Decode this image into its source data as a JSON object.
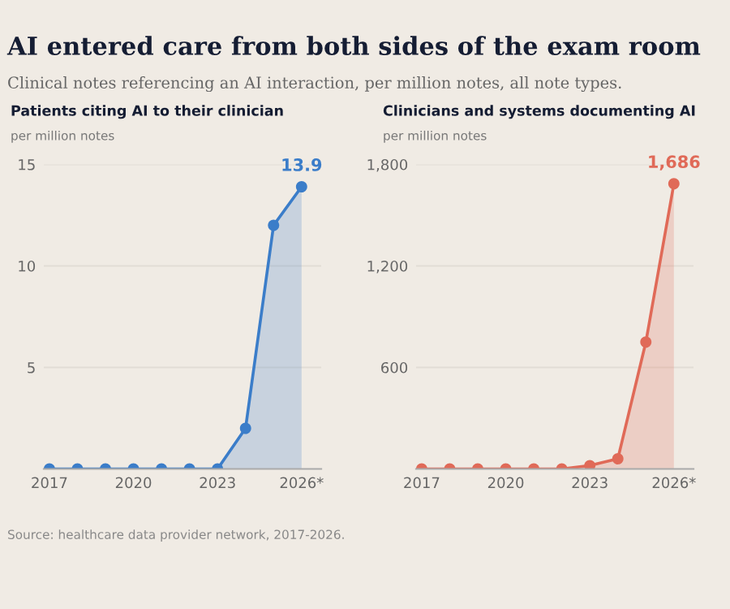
{
  "chart_data": [
    {
      "type": "area",
      "title": "Patients citing AI to their clinician",
      "subtitle": "per million notes",
      "annotations": [
        "AI entered care from both sides of the exam room",
        "Clinical notes referencing an AI interaction, per million notes, all note types.",
        "Source: healthcare data provider network, 2017-2026."
      ],
      "x": [
        2017,
        2018,
        2019,
        2020,
        2021,
        2022,
        2023,
        2024,
        2025,
        2026
      ],
      "series": [
        {
          "color": "#3b7dc9",
          "values": [
            0,
            0,
            0,
            0,
            0,
            0,
            0,
            2.0,
            12.0,
            13.9
          ],
          "value_labels": [
            null,
            null,
            null,
            null,
            null,
            null,
            null,
            null,
            null,
            "13.9"
          ]
        }
      ],
      "xlim": [
        2016.8,
        2026.7
      ],
      "xticks": [
        2017,
        2020,
        2023,
        {
          "value": 2026,
          "label": "2026*"
        }
      ],
      "ylim": [
        0,
        15
      ],
      "yticks": [
        5,
        10,
        15
      ],
      "grid": "y",
      "marker": "circle",
      "legend": false
    },
    {
      "type": "area",
      "title": "Clinicians and systems documenting AI",
      "subtitle": "per million notes",
      "x": [
        2017,
        2018,
        2019,
        2020,
        2021,
        2022,
        2023,
        2024,
        2025,
        2026
      ],
      "series": [
        {
          "color": "#e06a58",
          "values": [
            0,
            0,
            0,
            0,
            0,
            0,
            20,
            60,
            750,
            1686
          ],
          "value_labels": [
            null,
            null,
            null,
            null,
            null,
            null,
            null,
            null,
            null,
            "1,686"
          ]
        }
      ],
      "xlim": [
        2016.8,
        2026.7
      ],
      "xticks": [
        2017,
        2020,
        2023,
        {
          "value": 2026,
          "label": "2026*"
        }
      ],
      "ylim": [
        0,
        1800
      ],
      "yticks": [
        600,
        {
          "value": 1200,
          "label": "1,200"
        },
        {
          "value": 1800,
          "label": "1,800"
        }
      ],
      "grid": "y",
      "marker": "circle",
      "legend": false
    }
  ]
}
